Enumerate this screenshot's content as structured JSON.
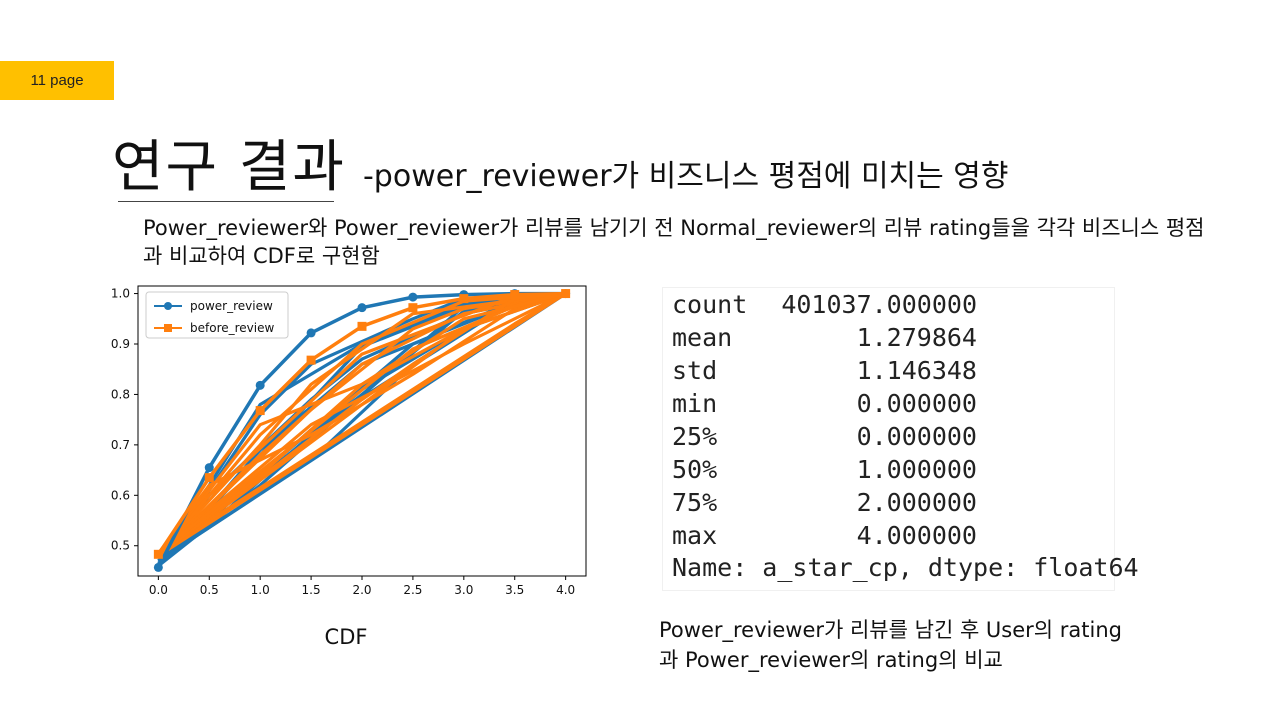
{
  "page_badge": "11 page",
  "title": {
    "main": "연구 결과",
    "sub": "-power_reviewer가 비즈니스 평점에 미치는 영향"
  },
  "description": "Power_reviewer와 Power_reviewer가 리뷰를 남기기 전 Normal_reviewer의 리뷰 rating들을 각각 비즈니스 평점과 비교하여 CDF로 구현함",
  "chart_caption": "CDF",
  "chart_data": {
    "type": "line",
    "title": "",
    "xlabel": "",
    "ylabel": "",
    "xlim": [
      -0.2,
      4.2
    ],
    "ylim": [
      0.44,
      1.015
    ],
    "x_ticks": [
      "0.0",
      "0.5",
      "1.0",
      "1.5",
      "2.0",
      "2.5",
      "3.0",
      "3.5",
      "4.0"
    ],
    "y_ticks": [
      "0.5",
      "0.6",
      "0.7",
      "0.8",
      "0.9",
      "1.0"
    ],
    "grid": false,
    "legend_position": "top-left",
    "series": [
      {
        "name": "power_review",
        "color": "#1f77b4",
        "marker": "circle",
        "x": [
          0.0,
          0.5,
          1.0,
          1.5,
          2.0,
          2.5,
          3.0,
          3.5,
          4.0
        ],
        "y": [
          0.457,
          0.655,
          0.818,
          0.922,
          0.972,
          0.993,
          0.998,
          1.0,
          1.0
        ]
      },
      {
        "name": "before_review",
        "color": "#ff7f0e",
        "marker": "square",
        "x": [
          0.0,
          0.5,
          1.0,
          1.5,
          2.0,
          2.5,
          3.0,
          3.5,
          4.0
        ],
        "y": [
          0.483,
          0.635,
          0.768,
          0.868,
          0.935,
          0.972,
          0.99,
          0.998,
          1.0
        ]
      }
    ],
    "background_bundle": {
      "power_review": [
        [
          [
            0,
            0.47
          ],
          [
            4,
            1.0
          ]
        ],
        [
          [
            0,
            0.47
          ],
          [
            3,
            0.965
          ],
          [
            4,
            1.0
          ]
        ],
        [
          [
            0,
            0.46
          ],
          [
            1.5,
            0.73
          ],
          [
            3.5,
            0.985
          ],
          [
            4,
            1.0
          ]
        ],
        [
          [
            0,
            0.46
          ],
          [
            1,
            0.78
          ],
          [
            2,
            0.9
          ],
          [
            3,
            0.98
          ],
          [
            4,
            1.0
          ]
        ],
        [
          [
            0,
            0.465
          ],
          [
            2,
            0.895
          ],
          [
            3,
            0.975
          ],
          [
            4,
            1.0
          ]
        ],
        [
          [
            0,
            0.46
          ],
          [
            1,
            0.62
          ],
          [
            3,
            0.975
          ],
          [
            4,
            1.0
          ]
        ],
        [
          [
            0,
            0.47
          ],
          [
            1.5,
            0.67
          ],
          [
            2.5,
            0.86
          ],
          [
            3.5,
            0.99
          ],
          [
            4,
            1.0
          ]
        ],
        [
          [
            0,
            0.46
          ],
          [
            1,
            0.69
          ],
          [
            2,
            0.86
          ],
          [
            2.5,
            0.9
          ],
          [
            3.5,
            0.985
          ],
          [
            4,
            1.0
          ]
        ],
        [
          [
            0,
            0.465
          ],
          [
            0.5,
            0.54
          ],
          [
            2,
            0.81
          ],
          [
            3,
            0.93
          ],
          [
            4,
            1.0
          ]
        ],
        [
          [
            0,
            0.46
          ],
          [
            1,
            0.76
          ],
          [
            1.5,
            0.86
          ],
          [
            2.5,
            0.95
          ],
          [
            3,
            0.99
          ],
          [
            4,
            1.0
          ]
        ],
        [
          [
            0,
            0.47
          ],
          [
            2.5,
            0.9
          ],
          [
            3.5,
            0.98
          ],
          [
            4,
            1.0
          ]
        ],
        [
          [
            0,
            0.46
          ],
          [
            0.5,
            0.6
          ],
          [
            1.5,
            0.79
          ],
          [
            2,
            0.87
          ],
          [
            3,
            0.96
          ],
          [
            4,
            1.0
          ]
        ]
      ],
      "before_review": [
        [
          [
            0,
            0.48
          ],
          [
            4,
            1.0
          ]
        ],
        [
          [
            0,
            0.485
          ],
          [
            3.5,
            0.94
          ],
          [
            4,
            1.0
          ]
        ],
        [
          [
            0,
            0.48
          ],
          [
            3,
            0.93
          ],
          [
            4,
            1.0
          ]
        ],
        [
          [
            0,
            0.48
          ],
          [
            1,
            0.68
          ],
          [
            2,
            0.86
          ],
          [
            3,
            0.96
          ],
          [
            4,
            1.0
          ]
        ],
        [
          [
            0,
            0.485
          ],
          [
            0.5,
            0.62
          ],
          [
            1.5,
            0.72
          ],
          [
            2.5,
            0.84
          ],
          [
            3.5,
            0.97
          ],
          [
            4,
            1.0
          ]
        ],
        [
          [
            0,
            0.48
          ],
          [
            1.5,
            0.77
          ],
          [
            2.5,
            0.93
          ],
          [
            3,
            0.97
          ],
          [
            4,
            1.0
          ]
        ],
        [
          [
            0,
            0.48
          ],
          [
            1,
            0.74
          ],
          [
            2,
            0.82
          ],
          [
            3,
            0.93
          ],
          [
            4,
            1.0
          ]
        ],
        [
          [
            0,
            0.485
          ],
          [
            0.5,
            0.6
          ],
          [
            2,
            0.88
          ],
          [
            3.5,
            0.995
          ],
          [
            4,
            1.0
          ]
        ],
        [
          [
            0,
            0.48
          ],
          [
            1,
            0.7
          ],
          [
            1.5,
            0.82
          ],
          [
            2.5,
            0.96
          ],
          [
            4,
            1.0
          ]
        ],
        [
          [
            0,
            0.48
          ],
          [
            2,
            0.79
          ],
          [
            2.5,
            0.86
          ],
          [
            3.5,
            0.99
          ],
          [
            4,
            1.0
          ]
        ],
        [
          [
            0,
            0.485
          ],
          [
            1.5,
            0.74
          ],
          [
            3,
            0.9
          ],
          [
            4,
            1.0
          ]
        ],
        [
          [
            0,
            0.48
          ],
          [
            0.5,
            0.56
          ],
          [
            1,
            0.64
          ],
          [
            2,
            0.82
          ],
          [
            3,
            0.95
          ],
          [
            4,
            1.0
          ]
        ],
        [
          [
            0,
            0.48
          ],
          [
            1,
            0.72
          ],
          [
            2,
            0.9
          ],
          [
            3,
            0.985
          ],
          [
            4,
            1.0
          ]
        ],
        [
          [
            0,
            0.485
          ],
          [
            2.5,
            0.89
          ],
          [
            3.5,
            0.975
          ],
          [
            4,
            1.0
          ]
        ]
      ]
    }
  },
  "stats": {
    "rows": [
      {
        "key": "count",
        "value": "401037.000000"
      },
      {
        "key": "mean",
        "value": "1.279864"
      },
      {
        "key": "std",
        "value": "1.146348"
      },
      {
        "key": "min",
        "value": "0.000000"
      },
      {
        "key": "25%",
        "value": "0.000000"
      },
      {
        "key": "50%",
        "value": "1.000000"
      },
      {
        "key": "75%",
        "value": "2.000000"
      },
      {
        "key": "max",
        "value": "4.000000"
      }
    ],
    "footer": "Name: a_star_cp, dtype: float64",
    "caption": "Power_reviewer가 리뷰를 남긴 후 User의 rating과 Power_reviewer의 rating의 비교"
  }
}
